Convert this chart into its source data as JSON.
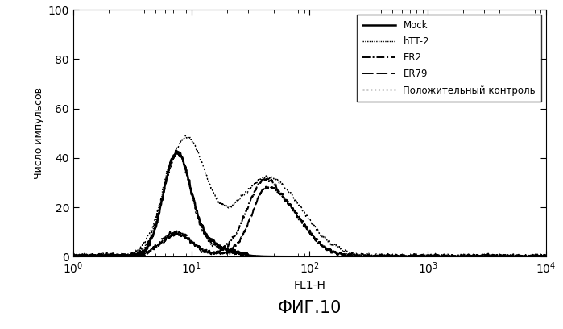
{
  "title": "ФИГ.10",
  "xlabel": "FL1-H",
  "ylabel": "Число импульсов",
  "xlim": [
    1,
    10000
  ],
  "ylim": [
    0,
    100
  ],
  "yticks": [
    0,
    20,
    40,
    60,
    80,
    100
  ],
  "legend_entries": [
    "Mock",
    "hTT-2",
    "ER2",
    "ER79",
    "Положительный контроль"
  ],
  "background_color": "white",
  "seed": 42
}
